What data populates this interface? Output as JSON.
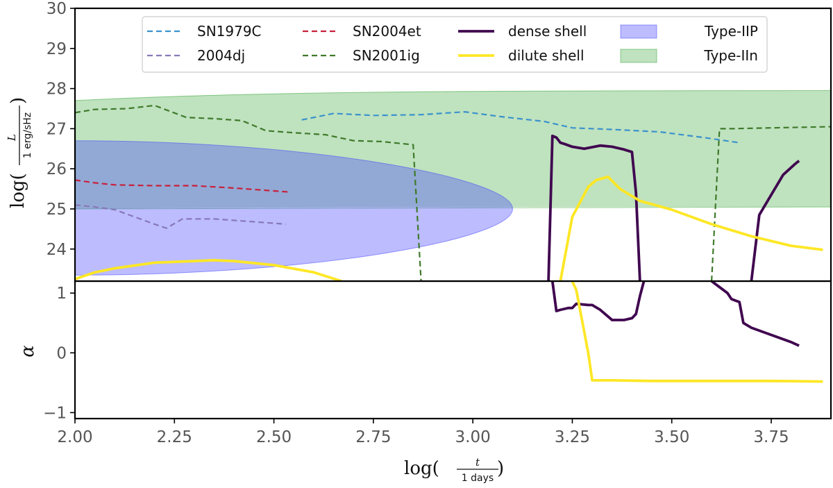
{
  "chart_data": [
    {
      "type": "line",
      "panel": "top",
      "ylabel": "log(L / 1 erg/sHz)",
      "ylabel_parts": {
        "pre": "log(",
        "num": "L",
        "den": "1 erg/sHz",
        "post": ")"
      },
      "xlim": [
        2.0,
        3.9
      ],
      "ylim": [
        23.2,
        30.0
      ],
      "yticks": [
        24,
        25,
        26,
        27,
        28,
        29,
        30
      ],
      "ytick_labels": [
        "24",
        "25",
        "26",
        "27",
        "28",
        "29",
        "30"
      ],
      "regions": [
        {
          "name": "Type-IIn",
          "color": "#2ca02c",
          "opacity": 0.3,
          "shape": "half-ellipse",
          "x0": 2.0,
          "x1": 3.9,
          "y_top": 27.95,
          "y_bottom": 25.05,
          "y_left_top": 27.7,
          "y_left_bottom": 25.0
        },
        {
          "name": "Type-IIP",
          "color": "#4040ff",
          "opacity": 0.35,
          "shape": "half-ellipse",
          "x0": 2.0,
          "x1": 3.1,
          "y_top": 26.7,
          "y_bottom": 23.35,
          "y_center": 25.0
        }
      ],
      "series": [
        {
          "name": "SN1979C",
          "color": "#3a92cc",
          "dash": true,
          "x": [
            2.57,
            2.65,
            2.75,
            2.87,
            2.98,
            3.07,
            3.18,
            3.25,
            3.35,
            3.47,
            3.58,
            3.67
          ],
          "y": [
            27.22,
            27.38,
            27.33,
            27.35,
            27.42,
            27.3,
            27.18,
            27.02,
            26.98,
            26.92,
            26.78,
            26.65
          ]
        },
        {
          "name": "2004dj",
          "color": "#8878b8",
          "dash": true,
          "x": [
            2.0,
            2.05,
            2.1,
            2.15,
            2.2,
            2.23,
            2.27,
            2.35,
            2.45,
            2.53
          ],
          "y": [
            25.1,
            25.05,
            24.98,
            24.8,
            24.62,
            24.52,
            24.75,
            24.75,
            24.68,
            24.62
          ]
        },
        {
          "name": "SN2004et",
          "color": "#c8203c",
          "dash": true,
          "x": [
            2.0,
            2.05,
            2.1,
            2.2,
            2.3,
            2.4,
            2.5,
            2.54
          ],
          "y": [
            25.72,
            25.65,
            25.6,
            25.58,
            25.58,
            25.52,
            25.45,
            25.42
          ]
        },
        {
          "name": "SN2001ig",
          "color": "#3f7a2a",
          "dash": true,
          "x": [
            2.0,
            2.05,
            2.13,
            2.2,
            2.28,
            2.35,
            2.42,
            2.48,
            2.55,
            2.63,
            2.7,
            2.77,
            2.85,
            2.87,
            null,
            3.6,
            3.62,
            3.65,
            3.75,
            3.9
          ],
          "y": [
            27.4,
            27.48,
            27.5,
            27.58,
            27.28,
            27.25,
            27.2,
            26.95,
            26.9,
            26.85,
            26.7,
            26.68,
            26.6,
            23.2,
            null,
            23.2,
            27.0,
            27.0,
            27.02,
            27.05
          ]
        },
        {
          "name": "dense shell",
          "color": "#40064f",
          "dash": false,
          "x": [
            3.19,
            3.2,
            3.21,
            3.22,
            3.23,
            3.25,
            3.28,
            3.32,
            3.35,
            3.38,
            3.4,
            3.41,
            3.42,
            null,
            3.7,
            3.72,
            3.75,
            3.78,
            3.81,
            3.82
          ],
          "y": [
            23.2,
            26.82,
            26.78,
            26.65,
            26.62,
            26.55,
            26.5,
            26.58,
            26.55,
            26.48,
            26.42,
            25.4,
            23.2,
            null,
            23.2,
            24.85,
            25.35,
            25.85,
            26.12,
            26.2
          ]
        },
        {
          "name": "dilute shell",
          "color": "#fde725",
          "dash": false,
          "x": [
            2.0,
            2.05,
            2.1,
            2.2,
            2.3,
            2.35,
            2.4,
            2.5,
            2.6,
            2.67,
            null,
            3.22,
            3.25,
            3.29,
            3.31,
            3.34,
            3.37,
            3.42,
            3.5,
            3.6,
            3.7,
            3.8,
            3.88
          ],
          "y": [
            23.25,
            23.42,
            23.52,
            23.66,
            23.7,
            23.72,
            23.7,
            23.6,
            23.42,
            23.2,
            null,
            23.2,
            24.8,
            25.55,
            25.72,
            25.8,
            25.5,
            25.2,
            24.98,
            24.62,
            24.32,
            24.08,
            23.98
          ]
        }
      ],
      "legend": {
        "position": "top-center",
        "columns": [
          [
            "SN1979C",
            "2004dj"
          ],
          [
            "SN2004et",
            "SN2001ig"
          ],
          [
            "dense shell",
            "dilute shell"
          ],
          [
            "Type-IIP",
            "Type-IIn"
          ]
        ]
      }
    },
    {
      "type": "line",
      "panel": "bottom",
      "ylabel": "α",
      "xlabel": "log(t / 1 days)",
      "xlabel_parts": {
        "pre": "log(",
        "num": "t",
        "den": "1 days",
        "post": ")"
      },
      "xlim": [
        2.0,
        3.9
      ],
      "ylim": [
        -1.1,
        1.2
      ],
      "yticks": [
        -1,
        0,
        1
      ],
      "ytick_labels": [
        "−1",
        "0",
        "1"
      ],
      "xticks": [
        2.0,
        2.25,
        2.5,
        2.75,
        3.0,
        3.25,
        3.5,
        3.75
      ],
      "xtick_labels": [
        "2.00",
        "2.25",
        "2.50",
        "2.75",
        "3.00",
        "3.25",
        "3.50",
        "3.75"
      ],
      "series": [
        {
          "name": "dense shell",
          "color": "#40064f",
          "dash": false,
          "x": [
            3.2,
            3.21,
            3.22,
            3.24,
            3.25,
            3.26,
            3.29,
            3.3,
            3.32,
            3.35,
            3.38,
            3.4,
            3.41,
            3.42,
            3.43,
            null,
            3.6,
            3.61,
            3.64,
            3.65,
            3.67,
            3.68,
            3.7,
            3.8,
            3.82
          ],
          "y": [
            1.2,
            0.7,
            0.72,
            0.75,
            0.75,
            0.82,
            0.8,
            0.8,
            0.72,
            0.55,
            0.55,
            0.58,
            0.65,
            0.95,
            1.2,
            null,
            1.2,
            1.15,
            1.0,
            0.9,
            0.85,
            0.5,
            0.42,
            0.18,
            0.12
          ]
        },
        {
          "name": "dilute shell",
          "color": "#fde725",
          "dash": false,
          "x": [
            3.25,
            3.26,
            3.29,
            3.3,
            3.35,
            3.45,
            3.55,
            3.65,
            3.75,
            3.88
          ],
          "y": [
            1.2,
            1.05,
            0.0,
            -0.46,
            -0.46,
            -0.47,
            -0.47,
            -0.47,
            -0.47,
            -0.48
          ]
        }
      ]
    }
  ]
}
